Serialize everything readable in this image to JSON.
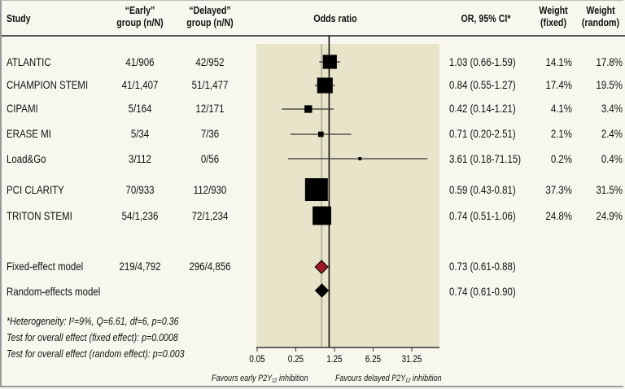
{
  "headers": {
    "study": "Study",
    "early_line1": "“Early”",
    "early_line2": "group (n/N)",
    "delayed_line1": "“Delayed”",
    "delayed_line2": "group (n/N)",
    "odds_ratio": "Odds ratio",
    "or_ci": "OR, 95% CI*",
    "wfixed_line1": "Weight",
    "wfixed_line2": "(fixed)",
    "wrandom_line1": "Weight",
    "wrandom_line2": "(random)"
  },
  "rows": [
    {
      "study": "ATLANTIC",
      "early": "41/906",
      "delayed": "42/952",
      "or_text": "1.03 (0.66-1.59)",
      "w_fixed": "14.1%",
      "w_random": "17.8%"
    },
    {
      "study": "CHAMPION STEMI",
      "early": "41/1,407",
      "delayed": "51/1,477",
      "or_text": "0.84 (0.55-1.27)",
      "w_fixed": "17.4%",
      "w_random": "19.5%"
    },
    {
      "study": "CIPAMI",
      "early": "5/164",
      "delayed": "12/171",
      "or_text": "0.42 (0.14-1.21)",
      "w_fixed": "4.1%",
      "w_random": "3.4%"
    },
    {
      "study": "ERASE MI",
      "early": "5/34",
      "delayed": "7/36",
      "or_text": "0.71 (0.20-2.51)",
      "w_fixed": "2.1%",
      "w_random": "2.4%"
    },
    {
      "study": "Load&Go",
      "early": "3/112",
      "delayed": "0/56",
      "or_text": "3.61 (0.18-71.15)",
      "w_fixed": "0.2%",
      "w_random": "0.4%"
    },
    {
      "study": "PCI CLARITY",
      "early": "70/933",
      "delayed": "112/930",
      "or_text": "0.59 (0.43-0.81)",
      "w_fixed": "37.3%",
      "w_random": "31.5%"
    },
    {
      "study": "TRITON STEMI",
      "early": "54/1,236",
      "delayed": "72/1,234",
      "or_text": "0.74 (0.51-1.06)",
      "w_fixed": "24.8%",
      "w_random": "24.9%"
    }
  ],
  "summary": [
    {
      "study": "Fixed-effect model",
      "early": "219/4,792",
      "delayed": "296/4,856",
      "or_text": "0.73 (0.61-0.88)"
    },
    {
      "study": "Random-effects model",
      "early": "",
      "delayed": "",
      "or_text": "0.74 (0.61-0.90)"
    }
  ],
  "footnotes": {
    "line1": "*Heterogeneity: I²=9%, Q=6.61, df=6, p=0.36",
    "line2": "Test for overall effect (fixed effect): p=0.0008",
    "line3": "Test for overall effect (random effect): p=0.003"
  },
  "favours": {
    "left": "Favours early P2Y₁₂ inhibition",
    "right": "Favours delayed P2Y₁₂ inhibition"
  },
  "colors": {
    "plot_bg": "#e8e4c9",
    "page_bg": "#f8f7ef",
    "fixed_diamond": "#9b1b22",
    "random_diamond": "#000000",
    "pooled_line": "#b9b6a2"
  },
  "chart_data": {
    "type": "forest",
    "xlabel": "Odds ratio",
    "x_scale": "log",
    "xlim": [
      0.05,
      60
    ],
    "ticks": [
      0.05,
      0.25,
      1.25,
      6.25,
      31.25
    ],
    "tick_labels": [
      "0.05",
      "0.25",
      "1.25",
      "6.25",
      "31.25"
    ],
    "null_line": 1,
    "pooled_line": 0.73,
    "studies": [
      {
        "name": "ATLANTIC",
        "or": 1.03,
        "lo": 0.66,
        "hi": 1.59,
        "weight": 14.1
      },
      {
        "name": "CHAMPION STEMI",
        "or": 0.84,
        "lo": 0.55,
        "hi": 1.27,
        "weight": 17.4
      },
      {
        "name": "CIPAMI",
        "or": 0.42,
        "lo": 0.14,
        "hi": 1.21,
        "weight": 4.1
      },
      {
        "name": "ERASE MI",
        "or": 0.71,
        "lo": 0.2,
        "hi": 2.51,
        "weight": 2.1
      },
      {
        "name": "Load&Go",
        "or": 3.61,
        "lo": 0.18,
        "hi": 71.15,
        "weight": 0.2
      },
      {
        "name": "PCI CLARITY",
        "or": 0.59,
        "lo": 0.43,
        "hi": 0.81,
        "weight": 37.3
      },
      {
        "name": "TRITON STEMI",
        "or": 0.74,
        "lo": 0.51,
        "hi": 1.06,
        "weight": 24.8
      }
    ],
    "pooled": [
      {
        "name": "Fixed-effect model",
        "or": 0.73,
        "lo": 0.61,
        "hi": 0.88
      },
      {
        "name": "Random-effects model",
        "or": 0.74,
        "lo": 0.61,
        "hi": 0.9
      }
    ]
  }
}
